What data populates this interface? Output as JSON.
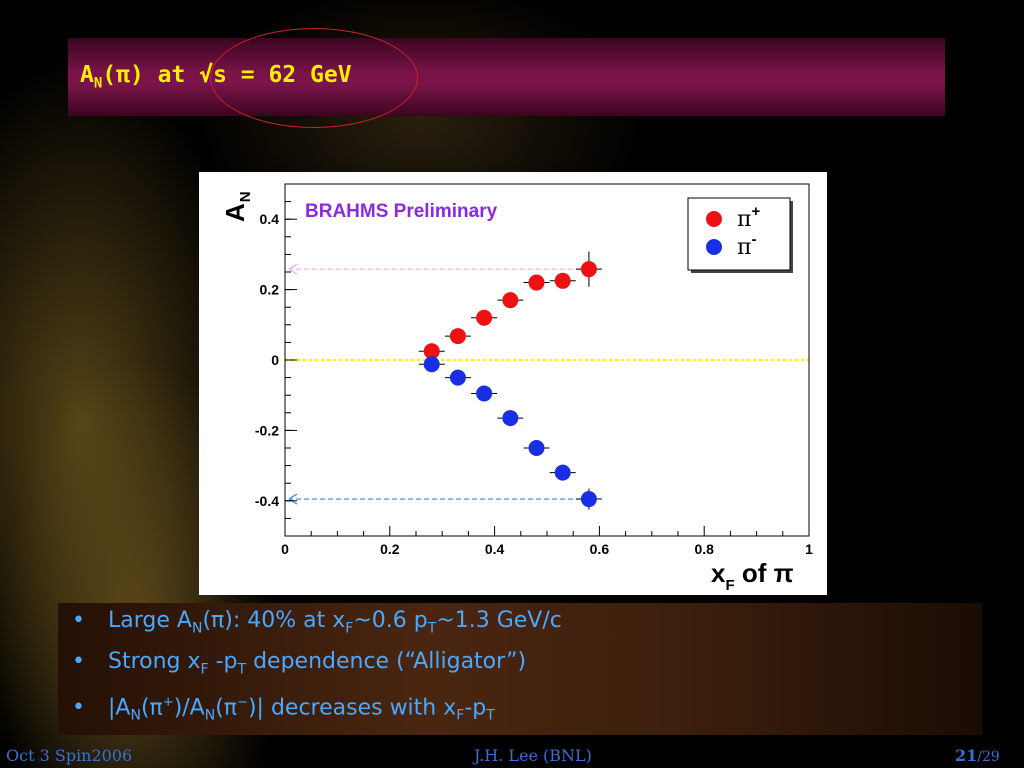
{
  "slide": {
    "title_a": "A",
    "title_n": "N",
    "title_rest": "(π) at √s = 62 GeV",
    "footer_left": "Oct 3 Spin2006",
    "footer_center": "J.H. Lee (BNL)",
    "page_current": "21",
    "page_total": "/29",
    "bullet_mark": "•",
    "bullets": [
      {
        "parts": [
          "Large A",
          "N",
          "(π): 40% at x",
          "F",
          "~0.6 p",
          "T",
          "~1.3 GeV/c"
        ]
      },
      {
        "parts": [
          "Strong x",
          "F",
          " -p",
          "T",
          " dependence (“Alligator”)"
        ]
      },
      {
        "parts": [
          "|A",
          "N",
          "(π",
          "+",
          ")/A",
          "N",
          "(π",
          "−",
          ")| decreases with x",
          "F",
          "-p",
          "T"
        ]
      }
    ]
  },
  "chart_data": {
    "type": "scatter",
    "title": "",
    "annotation": "BRAHMS Preliminary",
    "annotation_color": "#8a2be2",
    "ylabel_main": "A",
    "ylabel_sub": "N",
    "xlabel_main": "x",
    "xlabel_sub": "F",
    "xlabel_rest": " of π",
    "xlim": [
      0,
      1
    ],
    "ylim": [
      -0.5,
      0.5
    ],
    "xticks": [
      0,
      0.2,
      0.4,
      0.6,
      0.8,
      1
    ],
    "xtick_labels": [
      "0",
      "0.2",
      "0.4",
      "0.6",
      "0.8",
      "1"
    ],
    "yticks": [
      -0.4,
      -0.2,
      0,
      0.2,
      0.4
    ],
    "ytick_labels": [
      "-0.4",
      "-0.2",
      "0",
      "0.2",
      "0.4"
    ],
    "legend_position": "top-right",
    "zero_line_color": "#ffee00",
    "series": [
      {
        "name": "π+",
        "label_base": "π",
        "label_sup": "+",
        "color": "#ee1111",
        "x": [
          0.28,
          0.33,
          0.38,
          0.43,
          0.48,
          0.53,
          0.58
        ],
        "y": [
          0.025,
          0.068,
          0.12,
          0.17,
          0.22,
          0.225,
          0.258
        ],
        "yerr": [
          0.02,
          0.02,
          0.02,
          0.02,
          0.02,
          0.02,
          0.05
        ],
        "arrow_to": 0.258,
        "arrow_color": "#f0a8f0"
      },
      {
        "name": "π-",
        "label_base": "π",
        "label_sup": "-",
        "color": "#1a2ee6",
        "x": [
          0.28,
          0.33,
          0.38,
          0.43,
          0.48,
          0.53,
          0.58
        ],
        "y": [
          -0.012,
          -0.05,
          -0.095,
          -0.165,
          -0.25,
          -0.32,
          -0.395
        ],
        "yerr": [
          0.02,
          0.02,
          0.02,
          0.02,
          0.02,
          0.02,
          0.03
        ],
        "arrow_to": -0.395,
        "arrow_color": "#2a88e8"
      }
    ]
  }
}
